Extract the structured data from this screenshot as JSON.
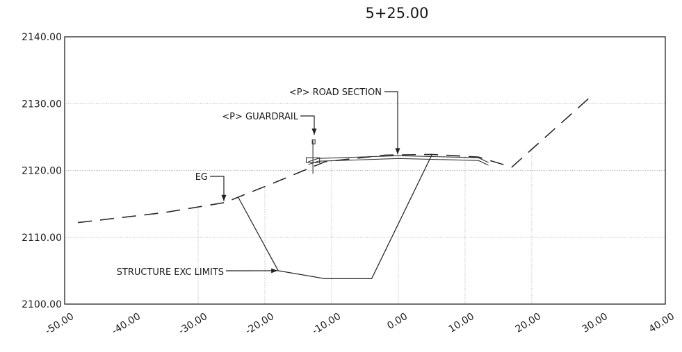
{
  "chart_data": {
    "type": "line",
    "title": "5+25.00",
    "xlabel": "",
    "ylabel": "",
    "xlim": [
      -50,
      40
    ],
    "ylim": [
      2100,
      2140
    ],
    "x_ticks": [
      "-50.00",
      "-40.00",
      "-30.00",
      "-20.00",
      "-10.00",
      "0.00",
      "10.00",
      "20.00",
      "30.00",
      "40.00"
    ],
    "y_ticks": [
      "2100.00",
      "2110.00",
      "2120.00",
      "2130.00",
      "2140.00"
    ],
    "grid": true,
    "series": [
      {
        "name": "EG",
        "style": "dashed",
        "points": [
          [
            -48,
            2112.2
          ],
          [
            -35,
            2113.7
          ],
          [
            -26,
            2115.2
          ],
          [
            -19,
            2118.0
          ],
          [
            -11,
            2121.3
          ],
          [
            -2,
            2122.3
          ],
          [
            5,
            2122.4
          ],
          [
            12,
            2122.0
          ],
          [
            17,
            2120.5
          ],
          [
            29,
            2131.2
          ]
        ]
      },
      {
        "name": "STRUCTURE EXC LIMITS",
        "style": "solid",
        "points": [
          [
            -24,
            2116.0
          ],
          [
            -18,
            2105.0
          ],
          [
            -11,
            2103.8
          ],
          [
            -4,
            2103.8
          ],
          [
            5,
            2122.3
          ]
        ]
      },
      {
        "name": "<P> ROAD SECTION",
        "style": "solid",
        "points": [
          [
            -13.5,
            2121.3
          ],
          [
            -12,
            2121.8
          ],
          [
            0,
            2122.2
          ],
          [
            12,
            2121.9
          ],
          [
            13.5,
            2121.2
          ]
        ]
      },
      {
        "name": "<P> GUARDRAIL",
        "style": "solid",
        "points": [
          [
            -12.8,
            2119.5
          ],
          [
            -12.8,
            2124.5
          ]
        ]
      }
    ],
    "annotations": [
      {
        "text": "<P> ROAD SECTION",
        "target": [
          0,
          2122.2
        ]
      },
      {
        "text": "<P> GUARDRAIL",
        "target": [
          -12.8,
          2124.5
        ]
      },
      {
        "text": "EG",
        "target": [
          -26,
          2115.2
        ]
      },
      {
        "text": "STRUCTURE EXC LIMITS",
        "target": [
          -18,
          2105.0
        ]
      }
    ]
  }
}
